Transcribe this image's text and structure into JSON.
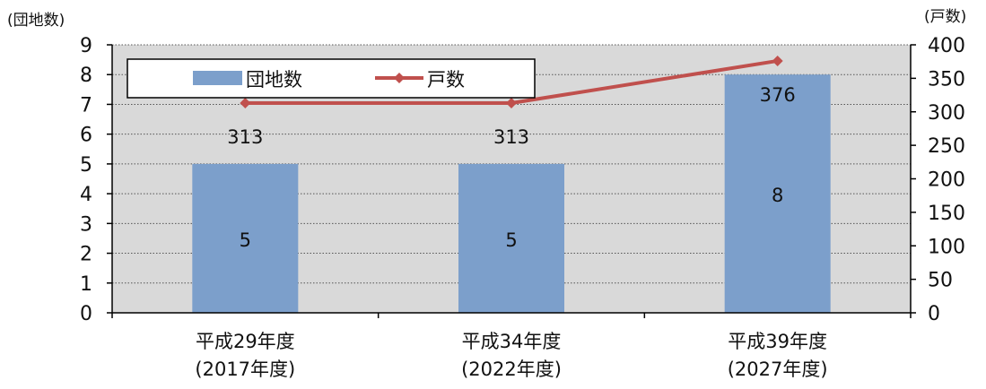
{
  "chart_data": {
    "type": "bar",
    "categories": [
      [
        "平成29年度",
        "(2017年度)"
      ],
      [
        "平成34年度",
        "(2022年度)"
      ],
      [
        "平成39年度",
        "(2027年度)"
      ]
    ],
    "series": [
      {
        "name": "団地数",
        "type": "bar",
        "axis": "left",
        "values": [
          5,
          5,
          8
        ],
        "color": "#7c9fcb"
      },
      {
        "name": "戸数",
        "type": "line",
        "axis": "right",
        "values": [
          313,
          313,
          376
        ],
        "color": "#c0504d"
      }
    ],
    "y_left": {
      "label": "(団地数)",
      "min": 0,
      "max": 9,
      "step": 1
    },
    "y_right": {
      "label": "(戸数)",
      "min": 0,
      "max": 400,
      "step": 50
    },
    "grid": true,
    "legend_position": "top-left",
    "plot_background": "#d9d9d9"
  }
}
